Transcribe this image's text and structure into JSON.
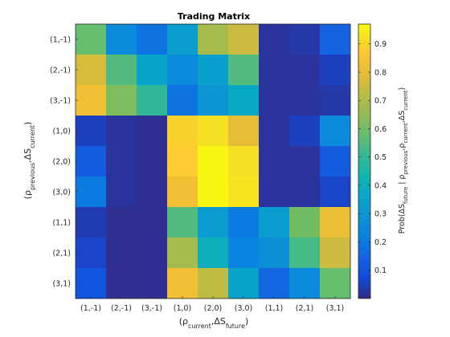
{
  "chart_data": {
    "type": "heatmap",
    "title": "Trading Matrix",
    "x_categories": [
      "(1,-1)",
      "(2,-1)",
      "(3,-1)",
      "(1,0)",
      "(2,0)",
      "(3,0)",
      "(1,1)",
      "(2,1)",
      "(3,1)"
    ],
    "y_categories": [
      "(1,-1)",
      "(2,-1)",
      "(3,-1)",
      "(1,0)",
      "(2,0)",
      "(3,0)",
      "(1,1)",
      "(2,1)",
      "(3,1)"
    ],
    "xlabel": {
      "segments": [
        {
          "text": "(ρ"
        },
        {
          "text": "current",
          "sub": true
        },
        {
          "text": ",ΔS"
        },
        {
          "text": "future",
          "sub": true
        },
        {
          "text": ")"
        }
      ]
    },
    "ylabel": {
      "segments": [
        {
          "text": "(ρ"
        },
        {
          "text": "previous",
          "sub": true
        },
        {
          "text": ",ΔS"
        },
        {
          "text": "current",
          "sub": true
        },
        {
          "text": ")"
        }
      ]
    },
    "colorbar_label": {
      "segments": [
        {
          "text": "Prob(ΔS"
        },
        {
          "text": "future",
          "sub": true
        },
        {
          "text": " | ρ"
        },
        {
          "text": "previous",
          "sub": true
        },
        {
          "text": ",ρ"
        },
        {
          "text": "current",
          "sub": true
        },
        {
          "text": ",ΔS"
        },
        {
          "text": "current",
          "sub": true
        },
        {
          "text": ")"
        }
      ]
    },
    "colormap": "parula",
    "clim": [
      0.0,
      0.97
    ],
    "colorbar_ticks": [
      0.1,
      0.2,
      0.3,
      0.4,
      0.5,
      0.6,
      0.7,
      0.8,
      0.9
    ],
    "values": [
      [
        0.58,
        0.25,
        0.18,
        0.33,
        0.68,
        0.75,
        0.02,
        0.03,
        0.14
      ],
      [
        0.77,
        0.55,
        0.35,
        0.25,
        0.34,
        0.55,
        0.02,
        0.02,
        0.05
      ],
      [
        0.83,
        0.62,
        0.5,
        0.18,
        0.3,
        0.38,
        0.02,
        0.02,
        0.03
      ],
      [
        0.05,
        0.02,
        0.01,
        0.89,
        0.92,
        0.8,
        0.02,
        0.05,
        0.25
      ],
      [
        0.12,
        0.02,
        0.01,
        0.88,
        0.96,
        0.92,
        0.02,
        0.02,
        0.12
      ],
      [
        0.2,
        0.02,
        0.01,
        0.83,
        0.96,
        0.93,
        0.02,
        0.02,
        0.06
      ],
      [
        0.04,
        0.01,
        0.01,
        0.55,
        0.32,
        0.2,
        0.32,
        0.6,
        0.82
      ],
      [
        0.06,
        0.01,
        0.01,
        0.68,
        0.4,
        0.23,
        0.28,
        0.53,
        0.75
      ],
      [
        0.1,
        0.01,
        0.01,
        0.83,
        0.73,
        0.35,
        0.15,
        0.25,
        0.58
      ]
    ]
  }
}
